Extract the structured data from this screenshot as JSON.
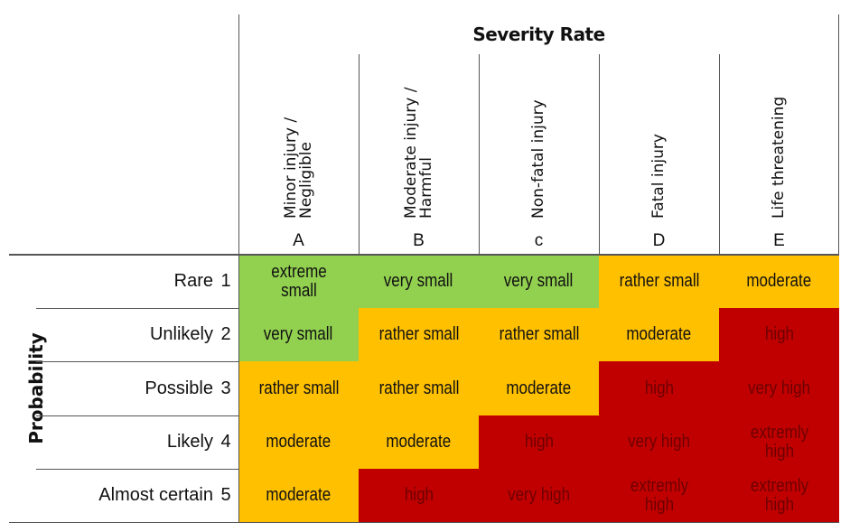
{
  "title": "Severity Rate",
  "axis_label": "Probability",
  "colors": {
    "green": "#92d050",
    "orange": "#ffc000",
    "red": "#c00000",
    "red_text": "#6e0000",
    "text": "#111111"
  },
  "columns": [
    {
      "label": "Minor injury /\nNegligible",
      "letter": "A"
    },
    {
      "label": "Moderate injury /\nHarmful",
      "letter": "B"
    },
    {
      "label": "Non-fatal injury",
      "letter": "c"
    },
    {
      "label": "Fatal injury",
      "letter": "D"
    },
    {
      "label": "Life threatening",
      "letter": "E"
    }
  ],
  "rows": [
    {
      "label": "Rare",
      "num": "1",
      "cells": [
        {
          "text": "extreme small",
          "level": "green"
        },
        {
          "text": "very small",
          "level": "green"
        },
        {
          "text": "very small",
          "level": "green"
        },
        {
          "text": "rather small",
          "level": "orange"
        },
        {
          "text": "moderate",
          "level": "orange"
        }
      ]
    },
    {
      "label": "Unlikely",
      "num": "2",
      "cells": [
        {
          "text": "very small",
          "level": "green"
        },
        {
          "text": "rather small",
          "level": "orange"
        },
        {
          "text": "rather small",
          "level": "orange"
        },
        {
          "text": "moderate",
          "level": "orange"
        },
        {
          "text": "high",
          "level": "red"
        }
      ]
    },
    {
      "label": "Possible",
      "num": "3",
      "cells": [
        {
          "text": "rather small",
          "level": "orange"
        },
        {
          "text": "rather small",
          "level": "orange"
        },
        {
          "text": "moderate",
          "level": "orange"
        },
        {
          "text": "high",
          "level": "red"
        },
        {
          "text": "very high",
          "level": "red"
        }
      ]
    },
    {
      "label": "Likely",
      "num": "4",
      "cells": [
        {
          "text": "moderate",
          "level": "orange"
        },
        {
          "text": "moderate",
          "level": "orange"
        },
        {
          "text": "high",
          "level": "red"
        },
        {
          "text": "very high",
          "level": "red"
        },
        {
          "text": "extremly high",
          "level": "red"
        }
      ]
    },
    {
      "label": "Almost certain",
      "num": "5",
      "cells": [
        {
          "text": "moderate",
          "level": "orange"
        },
        {
          "text": "high",
          "level": "red"
        },
        {
          "text": "very high",
          "level": "red"
        },
        {
          "text": "extremly high",
          "level": "red"
        },
        {
          "text": "extremly high",
          "level": "red"
        }
      ]
    }
  ]
}
